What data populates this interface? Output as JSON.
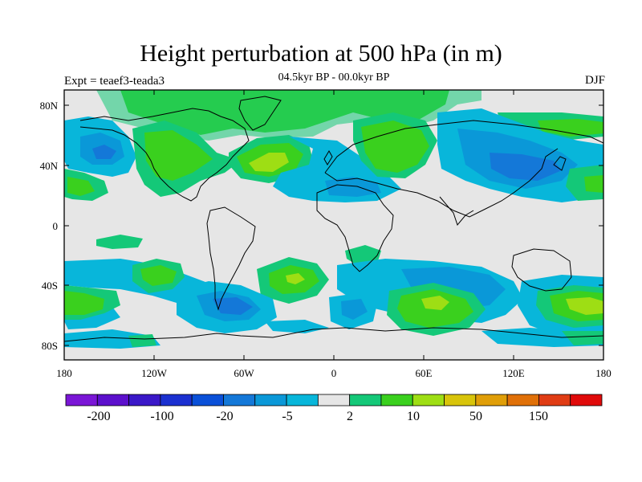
{
  "title": "Height perturbation at 500 hPa (in m)",
  "subtitle": "04.5kyr BP - 00.0kyr BP",
  "left_label": "Expt = teaef3-teada3",
  "right_label": "DJF",
  "map": {
    "lat_ticks": [
      "80N",
      "40N",
      "0",
      "40S",
      "80S"
    ],
    "lon_ticks": [
      "180",
      "120W",
      "60W",
      "0",
      "60E",
      "120E",
      "180"
    ],
    "background_color": "#e6e6e6"
  },
  "colorbar": {
    "colors": [
      "#7a16d6",
      "#5c10cc",
      "#3a18c8",
      "#1b30d0",
      "#0a50d8",
      "#1478d8",
      "#0a98d8",
      "#08b6da",
      "#e6e6e6",
      "#14c878",
      "#3ad01e",
      "#9ede14",
      "#d8c40a",
      "#e09e08",
      "#e07008",
      "#e03c14",
      "#e00a0a"
    ],
    "labels": [
      "-200",
      "-100",
      "-20",
      "-5",
      "2",
      "10",
      "50",
      "150"
    ]
  }
}
